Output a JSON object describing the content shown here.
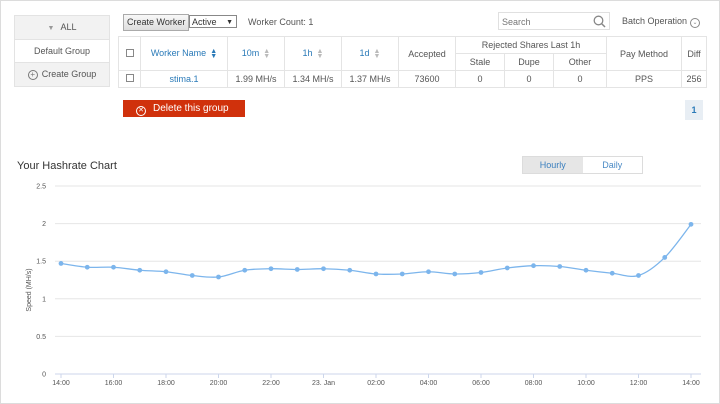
{
  "sidebar": {
    "all_label": "ALL",
    "default_group": "Default Group",
    "create_group": "Create Group"
  },
  "toolbar": {
    "create_worker": "Create Worker",
    "status_select": "Active",
    "worker_count": "Worker Count: 1",
    "search_placeholder": "Search",
    "batch_operation": "Batch Operation"
  },
  "table": {
    "headers": {
      "worker_name": "Worker Name",
      "h10m": "10m",
      "h1h": "1h",
      "h1d": "1d",
      "accepted": "Accepted",
      "rejected": "Rejected Shares Last 1h",
      "stale": "Stale",
      "dupe": "Dupe",
      "other": "Other",
      "pay_method": "Pay Method",
      "diff": "Diff"
    },
    "rows": [
      {
        "name": "stima.1",
        "m10": "1.99 MH/s",
        "h1": "1.34 MH/s",
        "d1": "1.37 MH/s",
        "accepted": "73600",
        "stale": "0",
        "dupe": "0",
        "other": "0",
        "pay_method": "PPS",
        "diff": "256"
      }
    ]
  },
  "delete_group": "Delete this group",
  "pagination": {
    "current": "1"
  },
  "chart_title": "Your Hashrate Chart",
  "range_tabs": {
    "hourly": "Hourly",
    "daily": "Daily",
    "active": "hourly"
  },
  "colors": {
    "accent": "#2a7ab8",
    "danger": "#d0310c",
    "line": "#7cb5ec"
  },
  "chart_data": {
    "type": "line",
    "ylabel": "Speed (MH/s)",
    "ylim": [
      0,
      2.5
    ],
    "yticks": [
      "0",
      "0.5",
      "1",
      "1.5",
      "2",
      "2.5"
    ],
    "xtick_labels": [
      "14:00",
      "16:00",
      "18:00",
      "20:00",
      "22:00",
      "23. Jan",
      "02:00",
      "04:00",
      "06:00",
      "08:00",
      "10:00",
      "12:00",
      "14:00"
    ],
    "series": [
      {
        "values": [
          1.47,
          1.42,
          1.42,
          1.38,
          1.36,
          1.31,
          1.29,
          1.38,
          1.4,
          1.39,
          1.4,
          1.38,
          1.33,
          1.33,
          1.36,
          1.33,
          1.35,
          1.41,
          1.44,
          1.43,
          1.38,
          1.34,
          1.31,
          1.55,
          1.99
        ]
      }
    ]
  }
}
